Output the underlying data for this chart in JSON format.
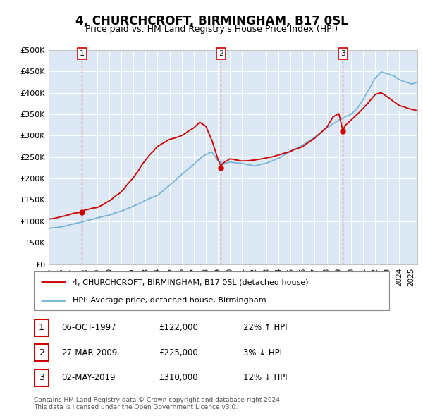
{
  "title": "4, CHURCHCROFT, BIRMINGHAM, B17 0SL",
  "subtitle": "Price paid vs. HM Land Registry's House Price Index (HPI)",
  "background_color": "#dce9f5",
  "ylim": [
    0,
    500000
  ],
  "yticks": [
    0,
    50000,
    100000,
    150000,
    200000,
    250000,
    300000,
    350000,
    400000,
    450000,
    500000
  ],
  "ytick_labels": [
    "£0",
    "£50K",
    "£100K",
    "£150K",
    "£200K",
    "£250K",
    "£300K",
    "£350K",
    "£400K",
    "£450K",
    "£500K"
  ],
  "hpi_color": "#7ab4d8",
  "price_color": "#cc0000",
  "vline_color": "#cc0000",
  "marker_color": "#cc0000",
  "sale_dates": [
    1997.76,
    2009.24,
    2019.33
  ],
  "sale_prices": [
    122000,
    225000,
    310000
  ],
  "sale_labels": [
    "1",
    "2",
    "3"
  ],
  "legend_label_price": "4, CHURCHCROFT, BIRMINGHAM, B17 0SL (detached house)",
  "legend_label_hpi": "HPI: Average price, detached house, Birmingham",
  "table_entries": [
    {
      "num": "1",
      "date": "06-OCT-1997",
      "price": "£122,000",
      "change": "22% ↑ HPI"
    },
    {
      "num": "2",
      "date": "27-MAR-2009",
      "price": "£225,000",
      "change": "3% ↓ HPI"
    },
    {
      "num": "3",
      "date": "02-MAY-2019",
      "price": "£310,000",
      "change": "12% ↓ HPI"
    }
  ],
  "footer": "Contains HM Land Registry data © Crown copyright and database right 2024.\nThis data is licensed under the Open Government Licence v3.0.",
  "xmin": 1995.0,
  "xmax": 2025.5,
  "hpi_anchors_x": [
    1995.0,
    1996.0,
    1997.0,
    1998.0,
    1999.0,
    2000.0,
    2001.0,
    2002.0,
    2003.0,
    2004.0,
    2005.0,
    2006.0,
    2007.0,
    2007.5,
    2008.0,
    2008.5,
    2009.0,
    2009.5,
    2010.0,
    2011.0,
    2012.0,
    2013.0,
    2014.0,
    2015.0,
    2016.0,
    2017.0,
    2018.0,
    2019.0,
    2019.5,
    2020.0,
    2020.5,
    2021.0,
    2021.5,
    2022.0,
    2022.5,
    2023.0,
    2023.5,
    2024.0,
    2025.0,
    2025.5
  ],
  "hpi_anchors_y": [
    83000,
    88000,
    95000,
    102000,
    110000,
    116000,
    125000,
    137000,
    150000,
    162000,
    185000,
    210000,
    235000,
    248000,
    258000,
    265000,
    245000,
    238000,
    242000,
    238000,
    233000,
    240000,
    252000,
    268000,
    282000,
    300000,
    320000,
    338000,
    345000,
    352000,
    365000,
    385000,
    410000,
    435000,
    450000,
    445000,
    440000,
    430000,
    420000,
    425000
  ],
  "price_anchors_x": [
    1995.0,
    1996.0,
    1997.0,
    1997.76,
    1998.0,
    1999.0,
    2000.0,
    2001.0,
    2002.0,
    2003.0,
    2004.0,
    2005.0,
    2006.0,
    2007.0,
    2007.5,
    2008.0,
    2008.5,
    2009.0,
    2009.24,
    2009.5,
    2010.0,
    2011.0,
    2012.0,
    2013.0,
    2014.0,
    2015.0,
    2016.0,
    2017.0,
    2018.0,
    2018.5,
    2019.0,
    2019.33,
    2019.5,
    2020.0,
    2020.5,
    2021.0,
    2021.5,
    2022.0,
    2022.5,
    2023.0,
    2023.5,
    2024.0,
    2025.0,
    2025.5
  ],
  "price_anchors_y": [
    105000,
    110000,
    118000,
    122000,
    126000,
    133000,
    148000,
    168000,
    200000,
    240000,
    272000,
    290000,
    298000,
    315000,
    328000,
    318000,
    285000,
    240000,
    225000,
    232000,
    242000,
    238000,
    240000,
    245000,
    252000,
    260000,
    272000,
    292000,
    318000,
    342000,
    350000,
    310000,
    322000,
    335000,
    348000,
    362000,
    378000,
    395000,
    400000,
    390000,
    378000,
    368000,
    360000,
    358000
  ]
}
